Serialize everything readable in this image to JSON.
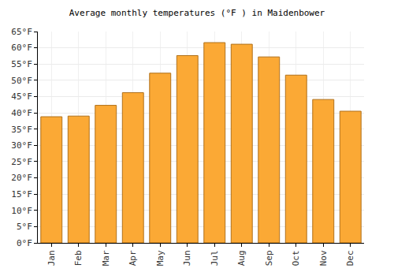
{
  "chart_data": {
    "type": "bar",
    "title": "Average monthly temperatures (°F ) in Maidenbower",
    "categories": [
      "Jan",
      "Feb",
      "Mar",
      "Apr",
      "May",
      "Jun",
      "Jul",
      "Aug",
      "Sep",
      "Oct",
      "Nov",
      "Dec"
    ],
    "values": [
      38.8,
      39.0,
      42.3,
      46.2,
      52.2,
      57.6,
      61.6,
      61.1,
      57.2,
      51.6,
      44.1,
      40.5
    ],
    "color": "#fba935",
    "ylim": [
      0,
      65
    ],
    "yticks": [
      {
        "value": 0,
        "label": "0°F"
      },
      {
        "value": 5,
        "label": "5°F"
      },
      {
        "value": 10,
        "label": "10°F"
      },
      {
        "value": 15,
        "label": "15°F"
      },
      {
        "value": 20,
        "label": "20°F"
      },
      {
        "value": 25,
        "label": "25°F"
      },
      {
        "value": 30,
        "label": "30°F"
      },
      {
        "value": 35,
        "label": "35°F"
      },
      {
        "value": 40,
        "label": "40°F"
      },
      {
        "value": 45,
        "label": "45°F"
      },
      {
        "value": 50,
        "label": "50°F"
      },
      {
        "value": 55,
        "label": "55°F"
      },
      {
        "value": 60,
        "label": "60°F"
      },
      {
        "value": 65,
        "label": "65°F"
      }
    ],
    "grid": true
  }
}
